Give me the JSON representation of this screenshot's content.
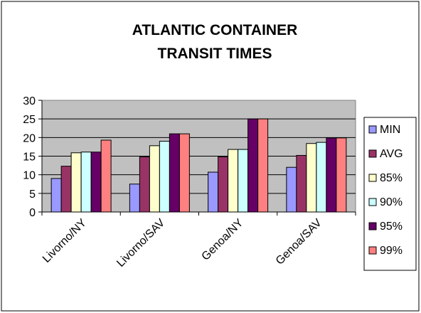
{
  "chart_data": {
    "type": "bar",
    "title": [
      "ATLANTIC CONTAINER",
      "TRANSIT TIMES"
    ],
    "xlabel": "",
    "ylabel": "",
    "ylim": [
      0,
      30
    ],
    "yticks": [
      "0",
      "5",
      "10",
      "15",
      "20",
      "25",
      "30"
    ],
    "categories": [
      "Livorno/NY",
      "Livorno/SAV",
      "Genoa/NY",
      "Genoa/SAV"
    ],
    "series": [
      {
        "name": "MIN",
        "color": "#9999ff",
        "values": [
          9,
          7.5,
          10.7,
          12
        ]
      },
      {
        "name": "AVG",
        "color": "#993366",
        "values": [
          12.3,
          14.8,
          14.8,
          15.2
        ]
      },
      {
        "name": "85%",
        "color": "#ffffcc",
        "values": [
          15.9,
          17.8,
          16.8,
          18.4
        ]
      },
      {
        "name": "90%",
        "color": "#ccffff",
        "values": [
          16.1,
          19,
          16.8,
          18.7
        ]
      },
      {
        "name": "95%",
        "color": "#660066",
        "values": [
          16.1,
          21,
          25,
          19.9
        ]
      },
      {
        "name": "99%",
        "color": "#ff8080",
        "values": [
          19.3,
          21,
          25,
          19.9
        ]
      }
    ],
    "grid": true,
    "plot_background": "#c0c0c0",
    "legend_position": "right"
  }
}
